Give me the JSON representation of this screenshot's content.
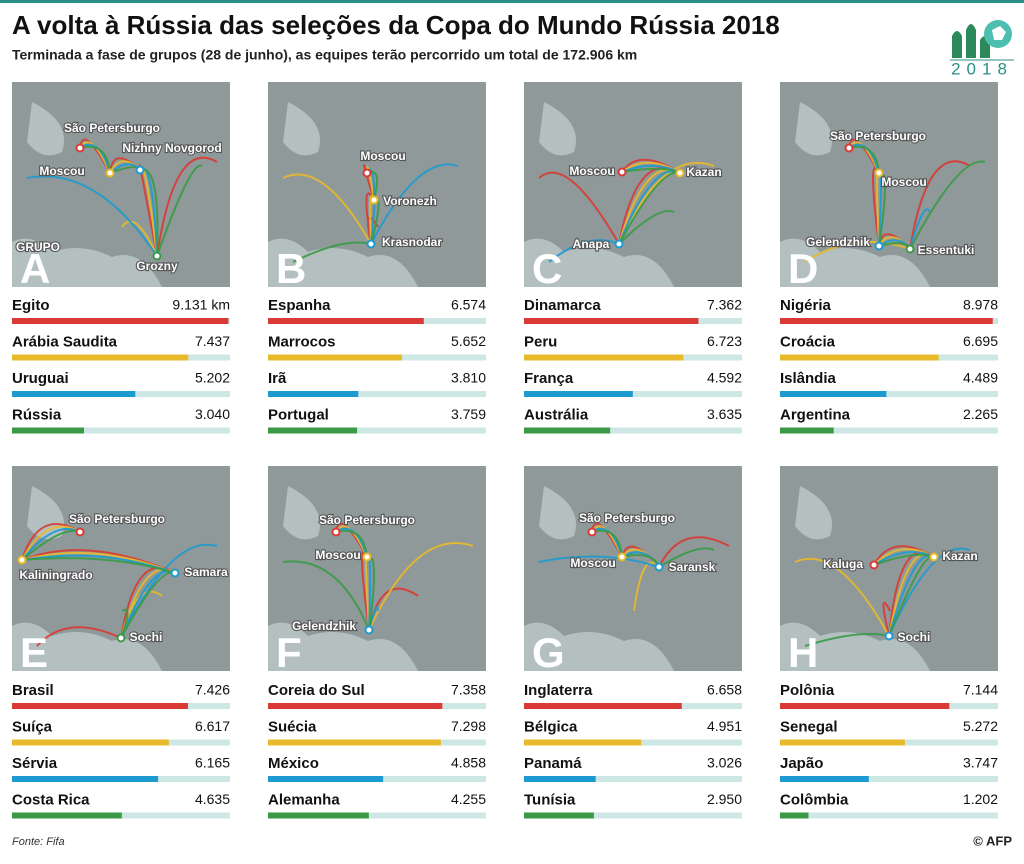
{
  "title": "A volta à Rússia das seleções da Copa do Mundo Rússia 2018",
  "subtitle": "Terminada a fase de grupos (28 de junho), as equipes terão percorrido um total de 172.906 km",
  "logo_year": "2018",
  "source": "Fonte: Fifa",
  "credit": "© AFP",
  "chart_data": [
    {
      "type": "bar",
      "group": "A",
      "caption": "GRUPO",
      "cities": [
        "São Petersburgo",
        "Moscou",
        "Nizhny Novgorod",
        "Grozny"
      ],
      "categories": [
        "Egito",
        "Arábia Saudita",
        "Uruguai",
        "Rússia"
      ],
      "values": [
        9131,
        7437,
        5202,
        3040
      ],
      "value_labels": [
        "9.131 km",
        "7.437",
        "5.202",
        "3.040"
      ],
      "colors": [
        "#d93a35",
        "#e8b92b",
        "#1d9bd0",
        "#3a9a46"
      ],
      "xlim": [
        0,
        9200
      ]
    },
    {
      "type": "bar",
      "group": "B",
      "cities": [
        "Moscou",
        "Voronezh",
        "Krasnodar"
      ],
      "categories": [
        "Espanha",
        "Marrocos",
        "Irã",
        "Portugal"
      ],
      "values": [
        6574,
        5652,
        3810,
        3759
      ],
      "value_labels": [
        "6.574",
        "5.652",
        "3.810",
        "3.759"
      ],
      "colors": [
        "#d93a35",
        "#e8b92b",
        "#1d9bd0",
        "#3a9a46"
      ],
      "xlim": [
        0,
        9200
      ]
    },
    {
      "type": "bar",
      "group": "C",
      "cities": [
        "Moscou",
        "Kazan",
        "Anapa"
      ],
      "categories": [
        "Dinamarca",
        "Peru",
        "França",
        "Austrália"
      ],
      "values": [
        7362,
        6723,
        4592,
        3635
      ],
      "value_labels": [
        "7.362",
        "6.723",
        "4.592",
        "3.635"
      ],
      "colors": [
        "#d93a35",
        "#e8b92b",
        "#1d9bd0",
        "#3a9a46"
      ],
      "xlim": [
        0,
        9200
      ]
    },
    {
      "type": "bar",
      "group": "D",
      "cities": [
        "São Petersburgo",
        "Moscou",
        "Gelendzhik",
        "Essentuki"
      ],
      "categories": [
        "Nigéria",
        "Croácia",
        "Islândia",
        "Argentina"
      ],
      "values": [
        8978,
        6695,
        4489,
        2265
      ],
      "value_labels": [
        "8.978",
        "6.695",
        "4.489",
        "2.265"
      ],
      "colors": [
        "#d93a35",
        "#e8b92b",
        "#1d9bd0",
        "#3a9a46"
      ],
      "xlim": [
        0,
        9200
      ]
    },
    {
      "type": "bar",
      "group": "E",
      "cities": [
        "São Petersburgo",
        "Kaliningrado",
        "Samara",
        "Sochi"
      ],
      "categories": [
        "Brasil",
        "Suíça",
        "Sérvia",
        "Costa Rica"
      ],
      "values": [
        7426,
        6617,
        6165,
        4635
      ],
      "value_labels": [
        "7.426",
        "6.617",
        "6.165",
        "4.635"
      ],
      "colors": [
        "#d93a35",
        "#e8b92b",
        "#1d9bd0",
        "#3a9a46"
      ],
      "xlim": [
        0,
        9200
      ]
    },
    {
      "type": "bar",
      "group": "F",
      "cities": [
        "São Petersburgo",
        "Moscou",
        "Gelendzhik"
      ],
      "categories": [
        "Coreia do Sul",
        "Suécia",
        "México",
        "Alemanha"
      ],
      "values": [
        7358,
        7298,
        4858,
        4255
      ],
      "value_labels": [
        "7.358",
        "7.298",
        "4.858",
        "4.255"
      ],
      "colors": [
        "#d93a35",
        "#e8b92b",
        "#1d9bd0",
        "#3a9a46"
      ],
      "xlim": [
        0,
        9200
      ]
    },
    {
      "type": "bar",
      "group": "G",
      "cities": [
        "São Petersburgo",
        "Moscou",
        "Saransk"
      ],
      "categories": [
        "Inglaterra",
        "Bélgica",
        "Panamá",
        "Tunísia"
      ],
      "values": [
        6658,
        4951,
        3026,
        2950
      ],
      "value_labels": [
        "6.658",
        "4.951",
        "3.026",
        "2.950"
      ],
      "colors": [
        "#d93a35",
        "#e8b92b",
        "#1d9bd0",
        "#3a9a46"
      ],
      "xlim": [
        0,
        9200
      ]
    },
    {
      "type": "bar",
      "group": "H",
      "cities": [
        "Kaluga",
        "Kazan",
        "Sochi"
      ],
      "categories": [
        "Polônia",
        "Senegal",
        "Japão",
        "Colômbia"
      ],
      "values": [
        7144,
        5272,
        3747,
        1202
      ],
      "value_labels": [
        "7.144",
        "5.272",
        "3.747",
        "1.202"
      ],
      "colors": [
        "#d93a35",
        "#e8b92b",
        "#1d9bd0",
        "#3a9a46"
      ],
      "xlim": [
        0,
        9200
      ]
    }
  ]
}
